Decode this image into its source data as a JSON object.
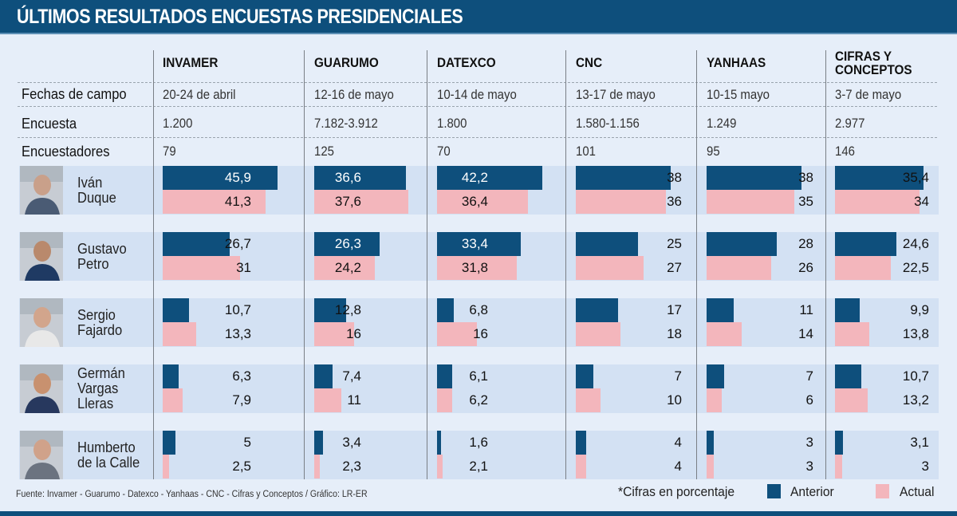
{
  "title": "ÚLTIMOS RESULTADOS ENCUESTAS PRESIDENCIALES",
  "colors": {
    "anterior": "#0e4f7c",
    "actual": "#f3b6bc",
    "row_bg": "#d3e1f3",
    "page_bg": "#e6eef9"
  },
  "pollsters": [
    {
      "name": "INVAMER",
      "fechas": "20-24 de abril",
      "encuesta": "1.200",
      "encuestadores": "79"
    },
    {
      "name": "GUARUMO",
      "fechas": "12-16 de mayo",
      "encuesta": "7.182-3.912",
      "encuestadores": "125"
    },
    {
      "name": "DATEXCO",
      "fechas": "10-14 de mayo",
      "encuesta": "1.800",
      "encuestadores": "70"
    },
    {
      "name": "CNC",
      "fechas": "13-17 de mayo",
      "encuesta": "1.580-1.156",
      "encuestadores": "101"
    },
    {
      "name": "YANHAAS",
      "fechas": "10-15 mayo",
      "encuesta": "1.249",
      "encuestadores": "95"
    },
    {
      "name": "CIFRAS Y CONCEPTOS",
      "fechas": "3-7 de mayo",
      "encuesta": "2.977",
      "encuestadores": "146"
    }
  ],
  "row_labels": {
    "fechas": "Fechas de campo",
    "encuesta": "Encuesta",
    "encuestadores": "Encuestadores"
  },
  "chart_data": {
    "type": "bar",
    "title": "ÚLTIMOS RESULTADOS ENCUESTAS PRESIDENCIALES",
    "unit": "%",
    "xlim": [
      0,
      50
    ],
    "categories": [
      "INVAMER",
      "GUARUMO",
      "DATEXCO",
      "CNC",
      "YANHAAS",
      "CIFRAS Y CONCEPTOS"
    ],
    "candidates": [
      {
        "name": "Iván Duque",
        "lines": [
          "Iván",
          "Duque"
        ],
        "anterior": [
          45.9,
          36.6,
          42.2,
          38,
          38,
          35.4
        ],
        "actual": [
          41.3,
          37.6,
          36.4,
          36,
          35,
          34
        ],
        "anterior_labels": [
          "45,9",
          "36,6",
          "42,2",
          "38",
          "38",
          "35,4"
        ],
        "actual_labels": [
          "41,3",
          "37,6",
          "36,4",
          "36",
          "35",
          "34"
        ]
      },
      {
        "name": "Gustavo Petro",
        "lines": [
          "Gustavo",
          "Petro"
        ],
        "anterior": [
          26.7,
          26.3,
          33.4,
          25,
          28,
          24.6
        ],
        "actual": [
          31,
          24.2,
          31.8,
          27,
          26,
          22.5
        ],
        "anterior_labels": [
          "26,7",
          "26,3",
          "33,4",
          "25",
          "28",
          "24,6"
        ],
        "actual_labels": [
          "31",
          "24,2",
          "31,8",
          "27",
          "26",
          "22,5"
        ]
      },
      {
        "name": "Sergio Fajardo",
        "lines": [
          "Sergio",
          "Fajardo"
        ],
        "anterior": [
          10.7,
          12.8,
          6.8,
          17,
          11,
          9.9
        ],
        "actual": [
          13.3,
          16,
          16,
          18,
          14,
          13.8
        ],
        "anterior_labels": [
          "10,7",
          "12,8",
          "6,8",
          "17",
          "11",
          "9,9"
        ],
        "actual_labels": [
          "13,3",
          "16",
          "16",
          "18",
          "14",
          "13,8"
        ]
      },
      {
        "name": "Germán Vargas Lleras",
        "lines": [
          "Germán",
          "Vargas",
          "Lleras"
        ],
        "anterior": [
          6.3,
          7.4,
          6.1,
          7,
          7,
          10.7
        ],
        "actual": [
          7.9,
          11,
          6.2,
          10,
          6,
          13.2
        ],
        "anterior_labels": [
          "6,3",
          "7,4",
          "6,1",
          "7",
          "7",
          "10,7"
        ],
        "actual_labels": [
          "7,9",
          "11",
          "6,2",
          "10",
          "6",
          "13,2"
        ]
      },
      {
        "name": "Humberto de la Calle",
        "lines": [
          "Humberto",
          "de la Calle"
        ],
        "anterior": [
          5,
          3.4,
          1.6,
          4,
          3,
          3.1
        ],
        "actual": [
          2.5,
          2.3,
          2.1,
          4,
          3,
          3
        ],
        "anterior_labels": [
          "5",
          "3,4",
          "1,6",
          "4",
          "3",
          "3,1"
        ],
        "actual_labels": [
          "2,5",
          "2,3",
          "2,1",
          "4",
          "3",
          "3"
        ]
      }
    ],
    "legend": [
      {
        "name": "Anterior",
        "color": "#0e4f7c"
      },
      {
        "name": "Actual",
        "color": "#f3b6bc"
      }
    ],
    "legend_position": "bottom-right"
  },
  "footer": {
    "source": "Fuente: Invamer - Guarumo - Datexco - Yanhaas - CNC - Cifras y Conceptos  / Gráfico: LR-ER",
    "note": "*Cifras en porcentaje",
    "legend_anterior": "Anterior",
    "legend_actual": "Actual"
  }
}
